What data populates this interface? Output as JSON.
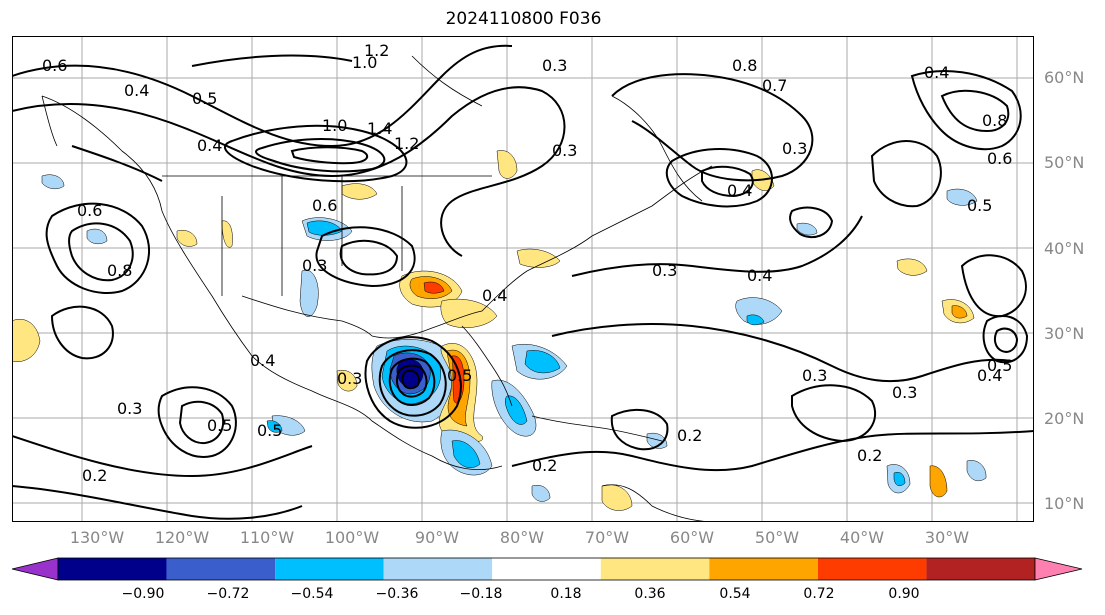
{
  "title": "2024110800 F036",
  "lat_labels": [
    "60°N",
    "50°N",
    "40°N",
    "30°N",
    "20°N",
    "10°N"
  ],
  "lon_labels": [
    "130°W",
    "120°W",
    "110°W",
    "100°W",
    "90°W",
    "80°W",
    "70°W",
    "60°W",
    "50°W",
    "40°W",
    "30°W"
  ],
  "colorbar": {
    "colors": [
      "#9932cc",
      "#00008b",
      "#3a5fcd",
      "#00bfff",
      "#add8f7",
      "#ffffff",
      "#ffe680",
      "#ffa500",
      "#ff3c00",
      "#b22222",
      "#ff80b0"
    ],
    "tick_labels": [
      "−0.90",
      "−0.72",
      "−0.54",
      "−0.36",
      "−0.18",
      "0.18",
      "0.36",
      "0.54",
      "0.72",
      "0.90"
    ]
  },
  "contour_labels": [
    "1.2",
    "1.0",
    "0.6",
    "0.4",
    "0.5",
    "0.4",
    "1.0",
    "1.4",
    "1.2",
    "0.6",
    "0.3",
    "0.3",
    "0.8",
    "0.7",
    "0.4",
    "0.8",
    "0.6",
    "0.5",
    "0.3",
    "0.3",
    "0.4",
    "0.6",
    "0.8",
    "0.4",
    "0.3",
    "0.4",
    "0.3",
    "0.5",
    "0.3",
    "0.2",
    "0.3",
    "0.2",
    "0.2",
    "0.2",
    "0.5",
    "0.5",
    "0.4",
    "0.3",
    "0.5",
    "0.4"
  ]
}
